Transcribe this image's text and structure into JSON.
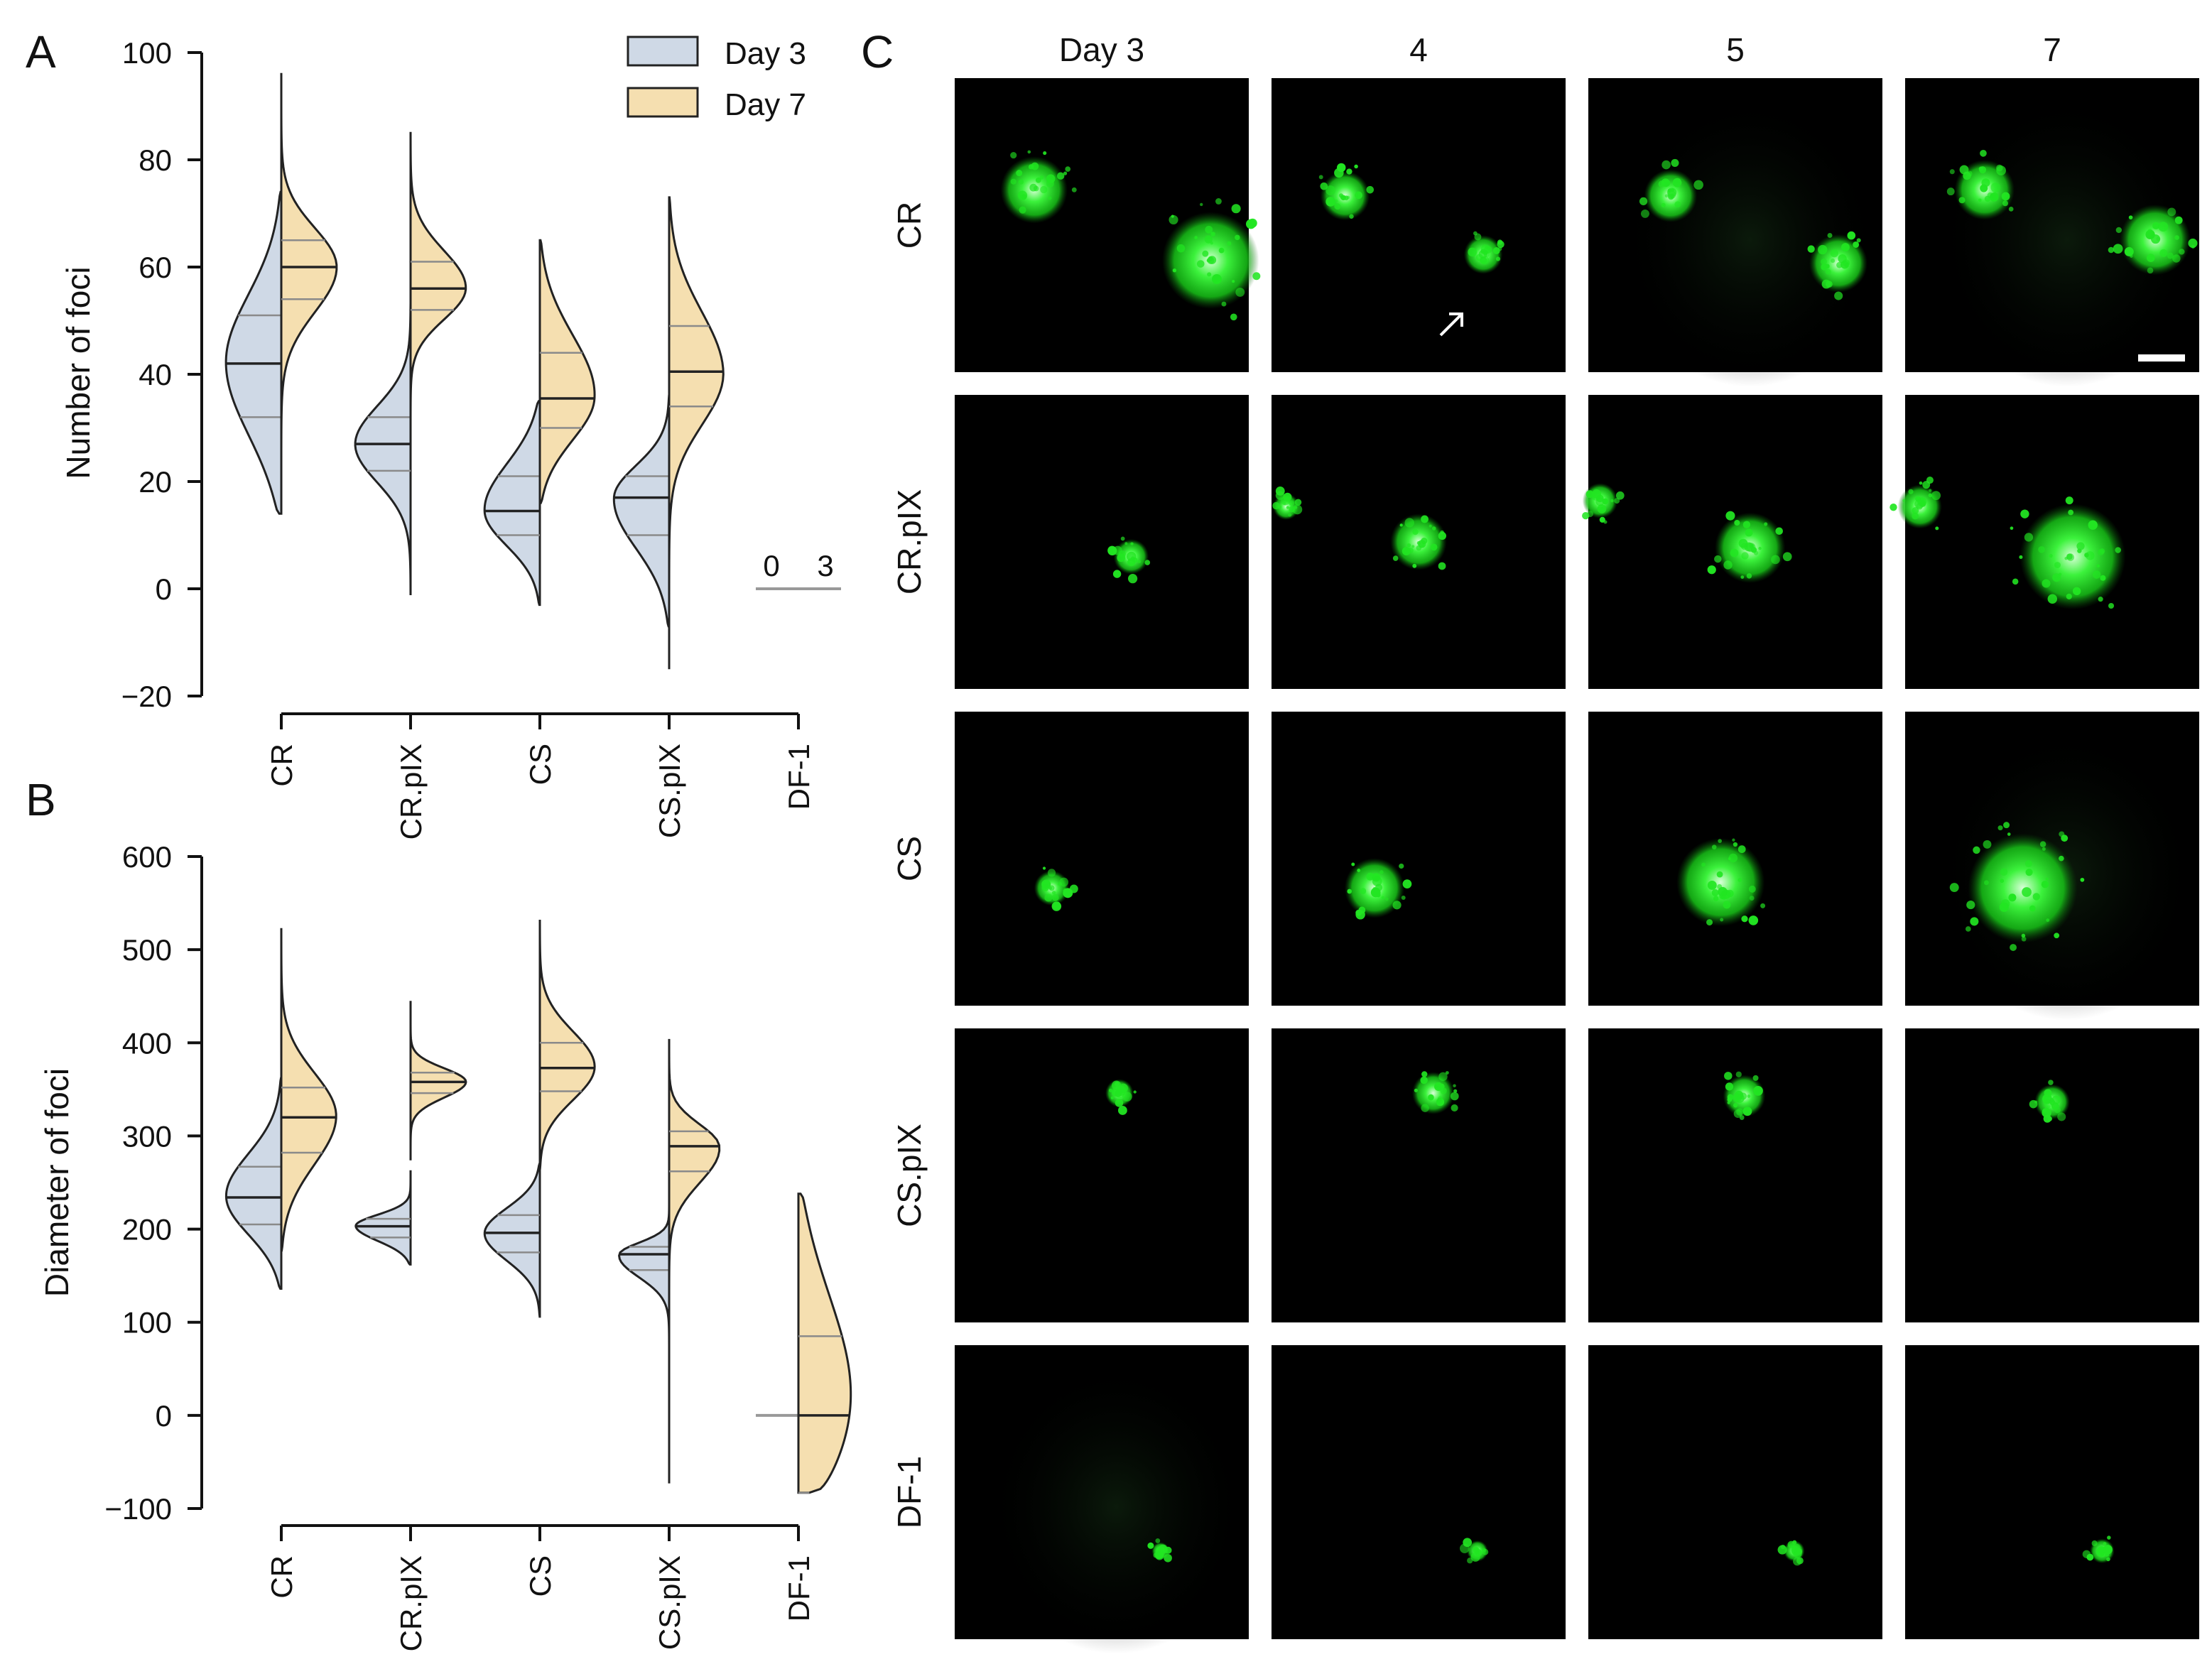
{
  "panels": {
    "a": "A",
    "b": "B",
    "c": "C"
  },
  "colors": {
    "day3_fill": "#cfd9e6",
    "day7_fill": "#f5dfb0",
    "outline": "#222222",
    "quartile_line": "#8a8a8a",
    "microscopy_bg": "#000000",
    "fluorescence": "#22e622",
    "fluorescence_core": "#c8ffc8"
  },
  "legend": {
    "items": [
      {
        "label": "Day 3",
        "color": "#cfd9e6"
      },
      {
        "label": "Day 7",
        "color": "#f5dfb0"
      }
    ],
    "position": "top-right"
  },
  "chart_data": [
    {
      "id": "A",
      "type": "violin",
      "split": true,
      "categories": [
        "CR",
        "CR.pIX",
        "CS",
        "CS.pIX",
        "DF-1"
      ],
      "ylabel": "Number of foci",
      "yticks": [
        -20,
        0,
        20,
        40,
        60,
        80,
        100
      ],
      "ylim": [
        -20,
        100
      ],
      "grid": false,
      "series": [
        {
          "name": "Day 3",
          "stats": [
            {
              "min": 14,
              "q1": 32,
              "median": 42,
              "q3": 51,
              "max": 74
            },
            {
              "min": -1,
              "q1": 22,
              "median": 27,
              "q3": 32,
              "max": 53
            },
            {
              "min": -3,
              "q1": 10,
              "median": 14.5,
              "q3": 21,
              "max": 35
            },
            {
              "min": -7,
              "q1": 10,
              "median": 17,
              "q3": 21,
              "max": 36
            },
            {
              "min": 0,
              "q1": 0,
              "median": 0,
              "q3": 0,
              "max": 0
            }
          ]
        },
        {
          "name": "Day 7",
          "stats": [
            {
              "min": 23,
              "q1": 54,
              "median": 60,
              "q3": 65,
              "max": 96
            },
            {
              "min": 32,
              "q1": 52,
              "median": 56,
              "q3": 61,
              "max": 85
            },
            {
              "min": 16,
              "q1": 30,
              "median": 35.5,
              "q3": 44,
              "max": 65
            },
            {
              "min": -15,
              "q1": 34,
              "median": 40.5,
              "q3": 49,
              "max": 73
            },
            {
              "min": 0,
              "q1": 0,
              "median": 0,
              "q3": 0,
              "max": 0
            }
          ]
        }
      ],
      "annotations": [
        {
          "category": "DF-1",
          "series": "Day 3",
          "text": "0"
        },
        {
          "category": "DF-1",
          "series": "Day 7",
          "text": "3"
        }
      ]
    },
    {
      "id": "B",
      "type": "violin",
      "split": true,
      "categories": [
        "CR",
        "CR.pIX",
        "CS",
        "CS.pIX",
        "DF-1"
      ],
      "ylabel": "Diameter of foci",
      "yticks": [
        -100,
        0,
        100,
        200,
        300,
        400,
        500,
        600
      ],
      "ylim": [
        -100,
        600
      ],
      "grid": false,
      "series": [
        {
          "name": "Day 3",
          "stats": [
            {
              "min": 136,
              "q1": 205,
              "median": 234,
              "q3": 267,
              "max": 362
            },
            {
              "min": 162,
              "q1": 191,
              "median": 203,
              "q3": 211,
              "max": 262
            },
            {
              "min": 106,
              "q1": 175,
              "median": 196,
              "q3": 215,
              "max": 270
            },
            {
              "min": -42,
              "q1": 156,
              "median": 173,
              "q3": 181,
              "max": 238
            },
            {
              "min": 0,
              "q1": 0,
              "median": 0,
              "q3": 0,
              "max": 0
            }
          ]
        },
        {
          "name": "Day 7",
          "stats": [
            {
              "min": 177,
              "q1": 282,
              "median": 320,
              "q3": 352,
              "max": 522
            },
            {
              "min": 275,
              "q1": 346,
              "median": 358,
              "q3": 368,
              "max": 445
            },
            {
              "min": 265,
              "q1": 348,
              "median": 373,
              "q3": 400,
              "max": 531
            },
            {
              "min": -73,
              "q1": 262,
              "median": 289,
              "q3": 305,
              "max": 403
            },
            {
              "min": -83,
              "q1": -83,
              "median": 0,
              "q3": 85,
              "max": 238
            }
          ]
        }
      ]
    },
    {
      "id": "C",
      "type": "image_grid",
      "columns": [
        "Day 3",
        "4",
        "5",
        "7"
      ],
      "rows": [
        "CR",
        "CR.pIX",
        "CS",
        "CS.pIX",
        "DF-1"
      ],
      "annotations": [
        {
          "row": "CR",
          "column": "4",
          "symbol": "arrow"
        }
      ],
      "scale_bar": true
    }
  ]
}
